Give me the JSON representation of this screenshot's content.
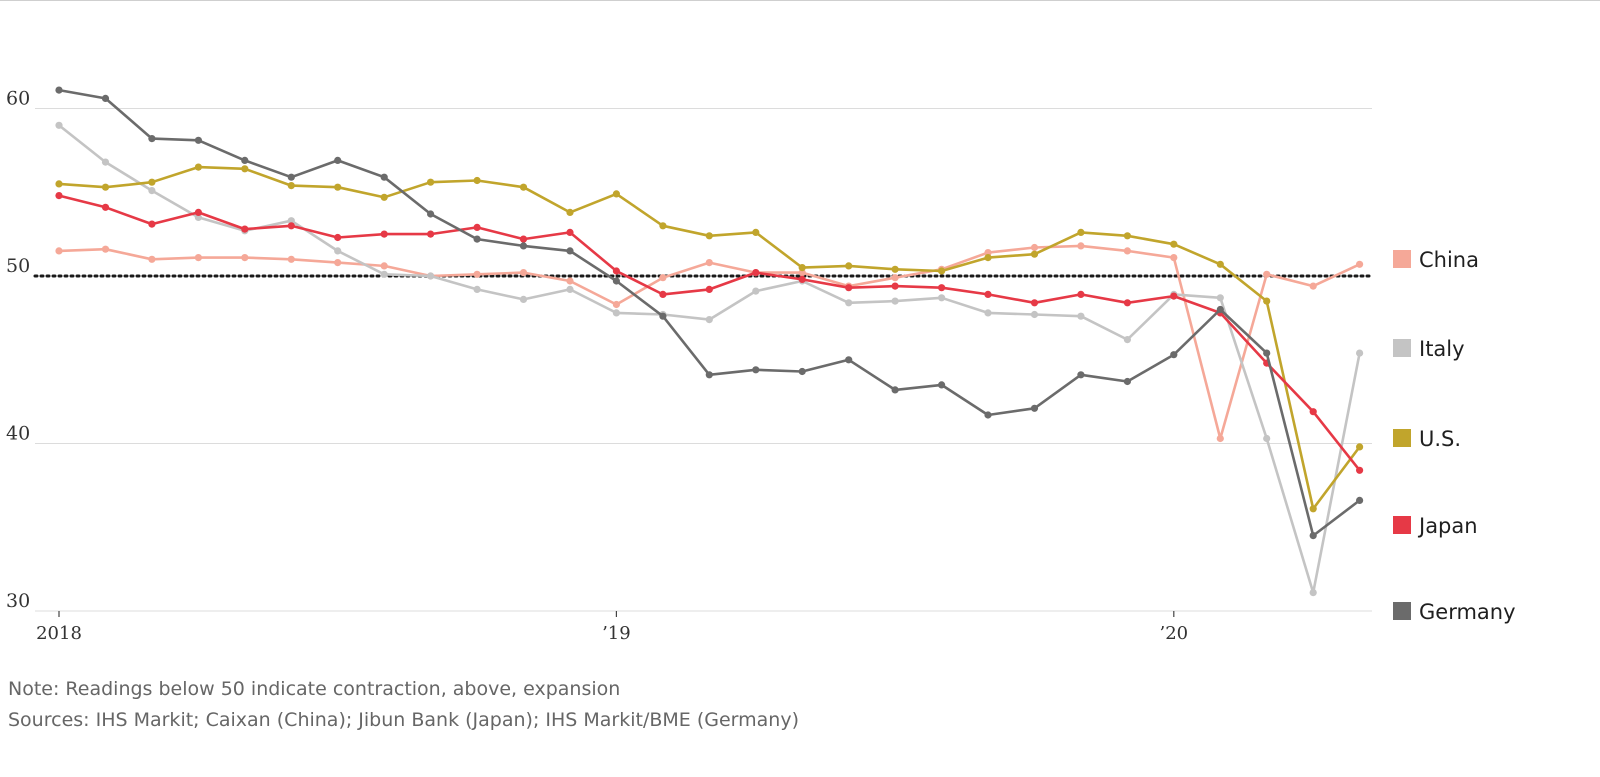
{
  "chart_data": {
    "type": "line",
    "title": "",
    "xlabel": "",
    "ylabel": "",
    "ylim": [
      30,
      62
    ],
    "yticks": [
      30,
      40,
      50,
      60
    ],
    "ytick_labels": [
      "30",
      "40",
      "50",
      "60"
    ],
    "xticks": [
      {
        "label": "2018",
        "index": 0
      },
      {
        "label": "’19",
        "index": 12
      },
      {
        "label": "’20",
        "index": 24
      }
    ],
    "reference_line": {
      "value": 50,
      "style": "dotted"
    },
    "grid": "horizontal",
    "legend_position": "right",
    "x": [
      "2018-01",
      "2018-02",
      "2018-03",
      "2018-04",
      "2018-05",
      "2018-06",
      "2018-07",
      "2018-08",
      "2018-09",
      "2018-10",
      "2018-11",
      "2018-12",
      "2019-01",
      "2019-02",
      "2019-03",
      "2019-04",
      "2019-05",
      "2019-06",
      "2019-07",
      "2019-08",
      "2019-09",
      "2019-10",
      "2019-11",
      "2019-12",
      "2020-01",
      "2020-02",
      "2020-03",
      "2020-04",
      "2020-05"
    ],
    "series": [
      {
        "name": "China",
        "color": "#f5a898",
        "values": [
          51.5,
          51.6,
          51.0,
          51.1,
          51.1,
          51.0,
          50.8,
          50.6,
          50.0,
          50.1,
          50.2,
          49.7,
          48.3,
          49.9,
          50.8,
          50.2,
          50.2,
          49.4,
          49.9,
          50.4,
          51.4,
          51.7,
          51.8,
          51.5,
          51.1,
          40.3,
          50.1,
          49.4,
          50.7
        ]
      },
      {
        "name": "Italy",
        "color": "#c4c4c4",
        "values": [
          59.0,
          56.8,
          55.1,
          53.5,
          52.7,
          53.3,
          51.5,
          50.1,
          50.0,
          49.2,
          48.6,
          49.2,
          47.8,
          47.7,
          47.4,
          49.1,
          49.7,
          48.4,
          48.5,
          48.7,
          47.8,
          47.7,
          47.6,
          46.2,
          48.9,
          48.7,
          40.3,
          31.1,
          45.4
        ]
      },
      {
        "name": "U.S.",
        "color": "#c1a52c",
        "values": [
          55.5,
          55.3,
          55.6,
          56.5,
          56.4,
          55.4,
          55.3,
          54.7,
          55.6,
          55.7,
          55.3,
          53.8,
          54.9,
          53.0,
          52.4,
          52.6,
          50.5,
          50.6,
          50.4,
          50.3,
          51.1,
          51.3,
          52.6,
          52.4,
          51.9,
          50.7,
          48.5,
          36.1,
          39.8
        ]
      },
      {
        "name": "Japan",
        "color": "#e63946",
        "values": [
          54.8,
          54.1,
          53.1,
          53.8,
          52.8,
          53.0,
          52.3,
          52.5,
          52.5,
          52.9,
          52.2,
          52.6,
          50.3,
          48.9,
          49.2,
          50.2,
          49.8,
          49.3,
          49.4,
          49.3,
          48.9,
          48.4,
          48.9,
          48.4,
          48.8,
          47.8,
          44.8,
          41.9,
          38.4
        ]
      },
      {
        "name": "Germany",
        "color": "#6b6b6b",
        "values": [
          61.1,
          60.6,
          58.2,
          58.1,
          56.9,
          55.9,
          56.9,
          55.9,
          53.7,
          52.2,
          51.8,
          51.5,
          49.7,
          47.6,
          44.1,
          44.4,
          44.3,
          45.0,
          43.2,
          43.5,
          41.7,
          42.1,
          44.1,
          43.7,
          45.3,
          48.0,
          45.4,
          34.5,
          36.6
        ]
      }
    ]
  },
  "legend": [
    {
      "label": "China",
      "color": "#f5a898"
    },
    {
      "label": "Italy",
      "color": "#c4c4c4"
    },
    {
      "label": "U.S.",
      "color": "#c1a52c"
    },
    {
      "label": "Japan",
      "color": "#e63946"
    },
    {
      "label": "Germany",
      "color": "#6b6b6b"
    }
  ],
  "footer": {
    "note": "Note: Readings below 50 indicate contraction, above, expansion",
    "sources": "Sources: IHS Markit; Caixan (China); Jibun Bank (Japan); IHS Markit/BME (Germany)"
  }
}
